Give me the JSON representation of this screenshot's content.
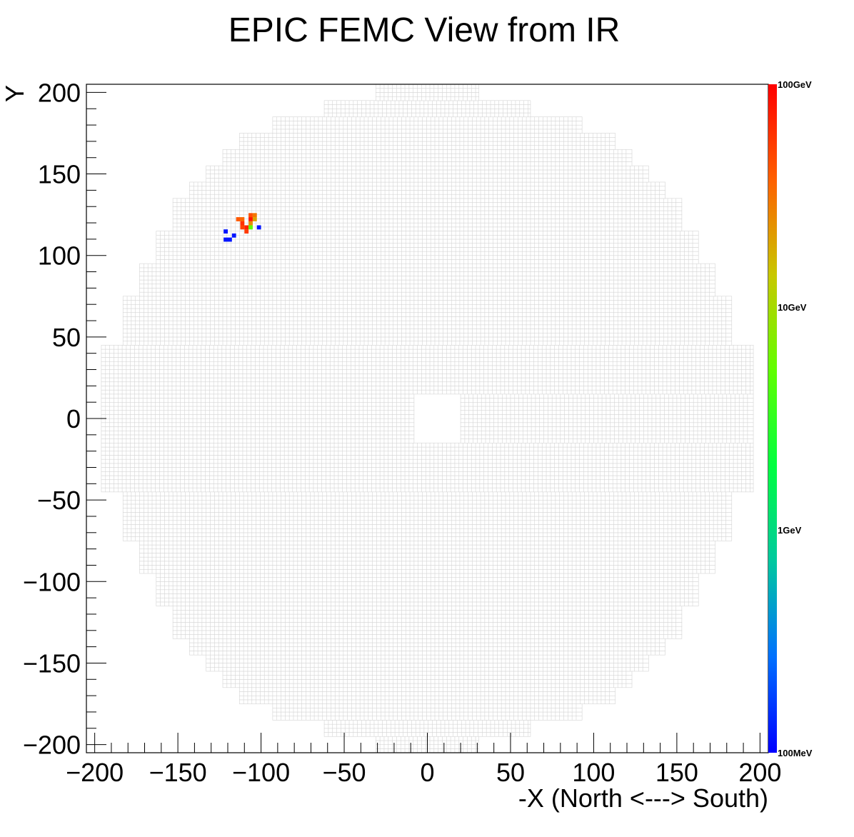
{
  "chart_data": {
    "type": "heatmap",
    "title": "EPIC FEMC View from IR",
    "xlabel": "-X (North <---> South)",
    "ylabel": "Y",
    "xlim": [
      -205,
      205
    ],
    "ylim": [
      -205,
      205
    ],
    "x_ticks": [
      -200,
      -150,
      -100,
      -50,
      0,
      50,
      100,
      150,
      200
    ],
    "y_ticks": [
      -200,
      -150,
      -100,
      -50,
      0,
      50,
      100,
      150,
      200
    ],
    "x_tick_labels": [
      "−200",
      "−150",
      "−100",
      "−50",
      "0",
      "50",
      "100",
      "150",
      "200"
    ],
    "y_tick_labels": [
      "−200",
      "−150",
      "−100",
      "−50",
      "0",
      "50",
      "100",
      "150",
      "200"
    ],
    "colorbar": {
      "scale": "log",
      "range_gev": [
        0.1,
        100
      ],
      "labels": [
        "100MeV",
        "1GeV",
        "10GeV",
        "100GeV"
      ],
      "colors": [
        "#0000ff",
        "#0070ff",
        "#00c8a0",
        "#00ff40",
        "#60ff00",
        "#c8c800",
        "#ff6000",
        "#ff0000"
      ]
    },
    "detector": {
      "cell_size": 2.5,
      "cell_edge_color": "#d4d4d4",
      "beam_hole": {
        "x": [
          -8,
          20
        ],
        "y": [
          -15,
          15
        ]
      },
      "outline_rows": [
        {
          "y": [
            -205,
            -195
          ],
          "x": [
            -31,
            31
          ]
        },
        {
          "y": [
            -195,
            -185
          ],
          "x": [
            -62,
            62
          ]
        },
        {
          "y": [
            -185,
            -175
          ],
          "x": [
            -93,
            93
          ]
        },
        {
          "y": [
            -175,
            -165
          ],
          "x": [
            -113,
            113
          ]
        },
        {
          "y": [
            -165,
            -155
          ],
          "x": [
            -123,
            123
          ]
        },
        {
          "y": [
            -155,
            -145
          ],
          "x": [
            -133,
            133
          ]
        },
        {
          "y": [
            -145,
            -135
          ],
          "x": [
            -143,
            143
          ]
        },
        {
          "y": [
            -135,
            -115
          ],
          "x": [
            -153,
            153
          ]
        },
        {
          "y": [
            -115,
            -95
          ],
          "x": [
            -163,
            163
          ]
        },
        {
          "y": [
            -95,
            -75
          ],
          "x": [
            -173,
            173
          ]
        },
        {
          "y": [
            -75,
            -45
          ],
          "x": [
            -183,
            183
          ]
        },
        {
          "y": [
            -45,
            45
          ],
          "x": [
            -196,
            196
          ]
        },
        {
          "y": [
            45,
            75
          ],
          "x": [
            -183,
            183
          ]
        },
        {
          "y": [
            75,
            95
          ],
          "x": [
            -173,
            173
          ]
        },
        {
          "y": [
            95,
            115
          ],
          "x": [
            -163,
            163
          ]
        },
        {
          "y": [
            115,
            135
          ],
          "x": [
            -153,
            153
          ]
        },
        {
          "y": [
            135,
            145
          ],
          "x": [
            -143,
            143
          ]
        },
        {
          "y": [
            145,
            155
          ],
          "x": [
            -133,
            133
          ]
        },
        {
          "y": [
            155,
            165
          ],
          "x": [
            -123,
            123
          ]
        },
        {
          "y": [
            165,
            175
          ],
          "x": [
            -113,
            113
          ]
        },
        {
          "y": [
            175,
            185
          ],
          "x": [
            -93,
            93
          ]
        },
        {
          "y": [
            185,
            195
          ],
          "x": [
            -62,
            62
          ]
        },
        {
          "y": [
            195,
            205
          ],
          "x": [
            -31,
            31
          ]
        }
      ]
    },
    "hits": [
      {
        "x": -115,
        "y": 121,
        "energy_gev": 40
      },
      {
        "x": -112.5,
        "y": 121,
        "energy_gev": 35
      },
      {
        "x": -107.5,
        "y": 123.5,
        "energy_gev": 45
      },
      {
        "x": -105,
        "y": 123.5,
        "energy_gev": 30
      },
      {
        "x": -112.5,
        "y": 118.5,
        "energy_gev": 60
      },
      {
        "x": -107.5,
        "y": 121,
        "energy_gev": 80
      },
      {
        "x": -105,
        "y": 121,
        "energy_gev": 20
      },
      {
        "x": -112.5,
        "y": 116,
        "energy_gev": 50
      },
      {
        "x": -110,
        "y": 116,
        "energy_gev": 70
      },
      {
        "x": -107.5,
        "y": 118.5,
        "energy_gev": 25
      },
      {
        "x": -110,
        "y": 113.5,
        "energy_gev": 55
      },
      {
        "x": -107.5,
        "y": 116,
        "energy_gev": 5
      },
      {
        "x": -122.5,
        "y": 113.5,
        "energy_gev": 0.12
      },
      {
        "x": -102.5,
        "y": 116,
        "energy_gev": 0.12
      },
      {
        "x": -117.5,
        "y": 111,
        "energy_gev": 0.12
      },
      {
        "x": -122.5,
        "y": 108.5,
        "energy_gev": 0.12
      },
      {
        "x": -120,
        "y": 108.5,
        "energy_gev": 0.12
      }
    ]
  }
}
